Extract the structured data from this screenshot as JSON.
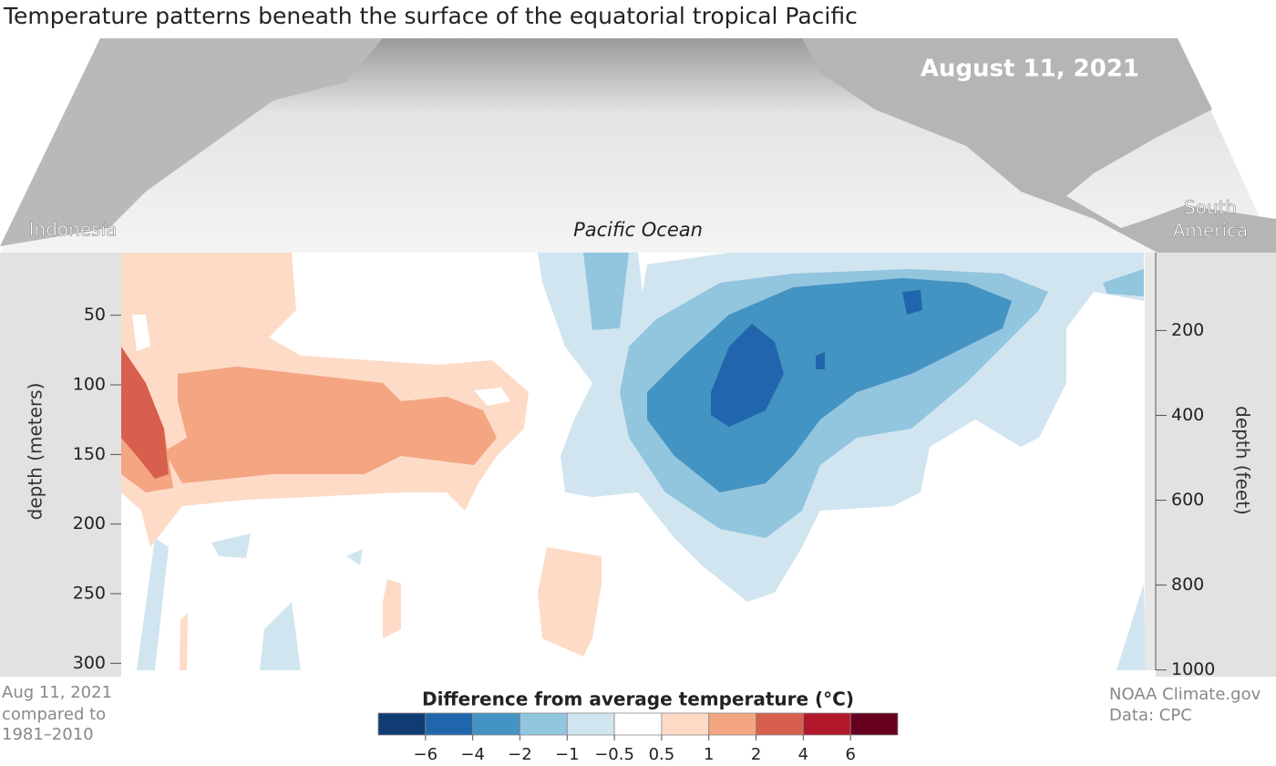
{
  "title": "Temperature patterns beneath the surface of the equatorial tropical Pacific",
  "date": "August 11, 2021",
  "map_labels": {
    "west": "Indonesia",
    "center": "Pacific Ocean",
    "east": [
      "South",
      "America"
    ]
  },
  "chart_data": {
    "type": "contour",
    "ylabel": "depth (meters)",
    "y2label": "depth (feet)",
    "ylim": [
      5,
      305
    ],
    "yticks": [
      50,
      100,
      150,
      200,
      250,
      300
    ],
    "y2lim": [
      16.4,
      1000.7
    ],
    "y2ticks": [
      200,
      400,
      600,
      800,
      1000
    ],
    "colorbar_title": "Difference from average temperature (°C)",
    "levels": [
      {
        "value": -6,
        "label": "−6"
      },
      {
        "value": -4,
        "label": "−4"
      },
      {
        "value": -2,
        "label": "−2"
      },
      {
        "value": -1,
        "label": "−1"
      },
      {
        "value": -0.5,
        "label": "−0.5"
      },
      0.5,
      1,
      2,
      4,
      6
    ],
    "colors": [
      "#0f3c73",
      "#2166ac",
      "#4393c3",
      "#92c5de",
      "#d1e5f0",
      "#ffffff",
      "#fddbc7",
      "#f4a582",
      "#d6604d",
      "#b2182b",
      "#67001f"
    ]
  },
  "notes_left": [
    "Aug 11, 2021",
    "compared to",
    "1981–2010"
  ],
  "notes_right": [
    "NOAA Climate.gov",
    "Data: CPC"
  ]
}
